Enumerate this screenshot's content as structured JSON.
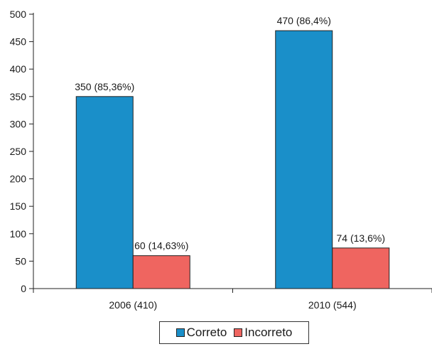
{
  "chart_data": {
    "type": "bar",
    "categories": [
      "2006 (410)",
      "2010 (544)"
    ],
    "series": [
      {
        "name": "Correto",
        "values": [
          350,
          470
        ],
        "color": "#1a8fc9",
        "labels": [
          "350 (85,36%)",
          "470 (86,4%)"
        ]
      },
      {
        "name": "Incorreto",
        "values": [
          60,
          74
        ],
        "color": "#ef6560",
        "labels": [
          "60 (14,63%)",
          "74 (13,6%)"
        ]
      }
    ],
    "ylim": [
      0,
      500
    ],
    "yticks": [
      0,
      50,
      100,
      150,
      200,
      250,
      300,
      350,
      400,
      450,
      500
    ],
    "legend_position": "bottom"
  }
}
